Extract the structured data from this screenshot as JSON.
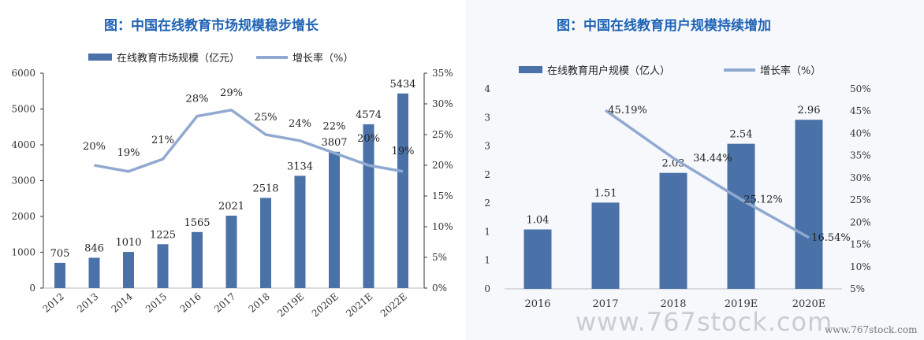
{
  "watermark": "www.767stock.com",
  "watermark_small": "www.767stock.com",
  "colors": {
    "bar": "#4a72a8",
    "line": "#91a9d0",
    "title": "#1f63b5"
  },
  "chart_data": [
    {
      "type": "bar+line",
      "title": "图：中国在线教育市场规模稳步增长",
      "categories": [
        "2012",
        "2013",
        "2014",
        "2015",
        "2016",
        "2017",
        "2018",
        "2019E",
        "2020E",
        "2021E",
        "2022E"
      ],
      "series": [
        {
          "name": "在线教育市场规模（亿元）",
          "type": "bar",
          "axis": "left",
          "values": [
            705,
            846,
            1010,
            1225,
            1565,
            2021,
            2518,
            3134,
            3807,
            4574,
            5434
          ],
          "labels": [
            "705",
            "846",
            "1010",
            "1225",
            "1565",
            "2021",
            "2518",
            "3134",
            "3807",
            "4574",
            "5434"
          ]
        },
        {
          "name": "增长率（%）",
          "type": "line",
          "axis": "right",
          "values": [
            null,
            20,
            19,
            21,
            28,
            29,
            25,
            24,
            22,
            20,
            19
          ],
          "labels": [
            "",
            "20%",
            "19%",
            "21%",
            "28%",
            "29%",
            "25%",
            "24%",
            "22%",
            "20%",
            "19%"
          ]
        }
      ],
      "ylim": [
        0,
        6000
      ],
      "yticks": [
        "0",
        "1000",
        "2000",
        "3000",
        "4000",
        "5000",
        "6000"
      ],
      "y2lim": [
        0,
        35
      ],
      "y2ticks": [
        "0%",
        "5%",
        "10%",
        "15%",
        "20%",
        "25%",
        "30%",
        "35%"
      ],
      "legend": "top"
    },
    {
      "type": "bar+line",
      "title": "图：中国在线教育用户规模持续增加",
      "categories": [
        "2016",
        "2017",
        "2018",
        "2019E",
        "2020E"
      ],
      "series": [
        {
          "name": "在线教育用户规模（亿人）",
          "type": "bar",
          "axis": "left",
          "values": [
            1.04,
            1.51,
            2.03,
            2.54,
            2.96
          ],
          "labels": [
            "1.04",
            "1.51",
            "2.03",
            "2.54",
            "2.96"
          ]
        },
        {
          "name": "增长率（%）",
          "type": "line",
          "axis": "right",
          "values": [
            null,
            45.19,
            34.44,
            25.12,
            16.54
          ],
          "labels": [
            "",
            "45.19%",
            "34.44%",
            "25.12%",
            "16.54%"
          ]
        }
      ],
      "ylim": [
        0,
        3.5
      ],
      "yticks": [
        "0",
        "1",
        "1",
        "2",
        "2",
        "3",
        "3",
        "4"
      ],
      "y2lim": [
        5,
        50
      ],
      "y2ticks": [
        "5%",
        "10%",
        "15%",
        "20%",
        "25%",
        "30%",
        "35%",
        "40%",
        "45%",
        "50%"
      ],
      "legend": "top"
    }
  ]
}
